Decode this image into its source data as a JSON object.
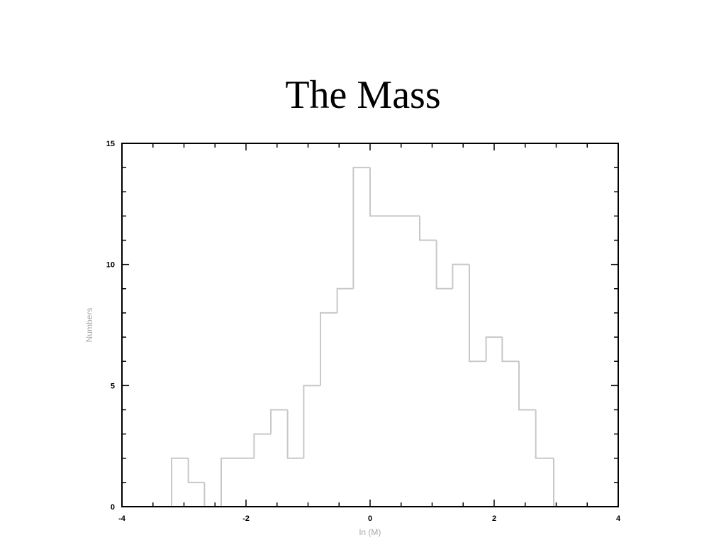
{
  "slide": {
    "title": "The Mass"
  },
  "chart_data": {
    "type": "bar",
    "style": "step-histogram",
    "title": "The Mass",
    "xlabel": "ln (M)",
    "ylabel": "Numbers",
    "xlim": [
      -4,
      4
    ],
    "ylim": [
      0,
      15
    ],
    "x_ticks": [
      -4,
      -2,
      0,
      2,
      4
    ],
    "y_ticks": [
      0,
      5,
      10,
      15
    ],
    "bin_edges": [
      -3.2,
      -2.93,
      -2.67,
      -2.4,
      -2.13,
      -1.87,
      -1.6,
      -1.33,
      -1.07,
      -0.8,
      -0.53,
      -0.27,
      0.0,
      0.27,
      0.53,
      0.8,
      1.07,
      1.33,
      1.6,
      1.87,
      2.13,
      2.4,
      2.67,
      2.96
    ],
    "values": [
      2,
      1,
      0,
      2,
      2,
      3,
      4,
      2,
      5,
      8,
      9,
      14,
      12,
      12,
      12,
      11,
      9,
      10,
      6,
      7,
      6,
      4,
      2
    ],
    "grid": false,
    "colors": {
      "histogram": "#c8c8c8",
      "axes": "#000000",
      "axis_label": "#a8a8a8"
    }
  }
}
